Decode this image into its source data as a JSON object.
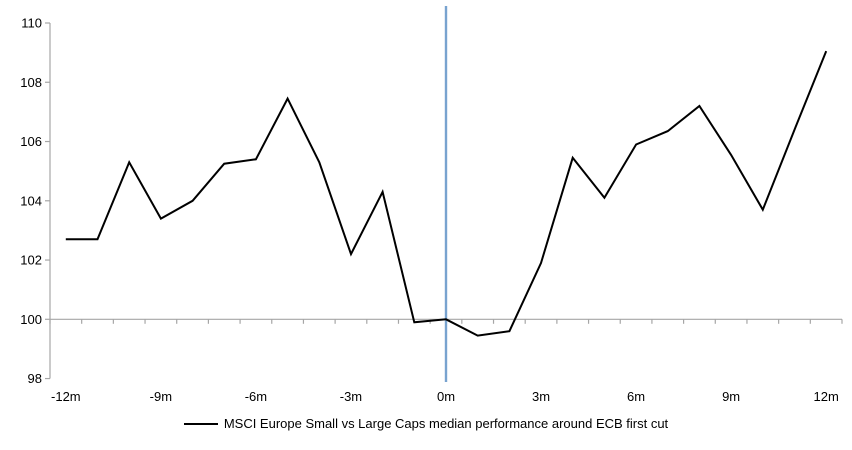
{
  "chart_data": {
    "type": "line",
    "title": "",
    "xlabel": "",
    "ylabel": "",
    "legend": "MSCI Europe Small vs Large Caps median performance around ECB first cut",
    "legend_position": "bottom-center",
    "x": [
      -12,
      -11,
      -10,
      -9,
      -8,
      -7,
      -6,
      -5,
      -4,
      -3,
      -2,
      -1,
      0,
      1,
      2,
      3,
      4,
      5,
      6,
      7,
      8,
      9,
      10,
      11,
      12
    ],
    "values": [
      102.7,
      102.7,
      105.3,
      103.4,
      104.0,
      105.25,
      105.4,
      107.45,
      105.3,
      102.2,
      104.3,
      99.9,
      100.0,
      99.45,
      99.6,
      101.9,
      105.45,
      104.1,
      105.9,
      106.35,
      107.2,
      105.55,
      103.7,
      106.4,
      109.05
    ],
    "ylim": [
      98,
      110
    ],
    "xlim": [
      -12.5,
      12.5
    ],
    "y_ticks": [
      98,
      100,
      102,
      104,
      106,
      108,
      110
    ],
    "y_tick_labels": [
      "98",
      "100",
      "102",
      "104",
      "106",
      "108",
      "110"
    ],
    "x_ticks": [
      {
        "month": -12,
        "label": "-12m"
      },
      {
        "month": -9,
        "label": "-9m"
      },
      {
        "month": -6,
        "label": "-6m"
      },
      {
        "month": -3,
        "label": "-3m"
      },
      {
        "month": 0,
        "label": "0m"
      },
      {
        "month": 3,
        "label": "3m"
      },
      {
        "month": 6,
        "label": "6m"
      },
      {
        "month": 9,
        "label": "9m"
      },
      {
        "month": 12,
        "label": "12m"
      }
    ],
    "minor_x_ticks_every_month": true,
    "baseline_value": 100,
    "event_line": {
      "month": 0
    },
    "grid": "single horizontal axis line at 100 with monthly tick marks; no other gridlines",
    "colors": {
      "series_line": "#000000",
      "event_line": "#78a3cf",
      "axis": "#a6a6a6",
      "text": "#000000",
      "background": "#ffffff"
    }
  }
}
